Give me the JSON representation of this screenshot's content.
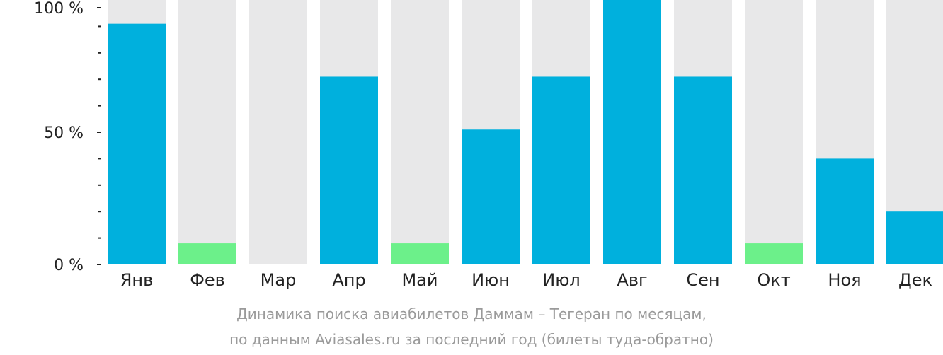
{
  "colors": {
    "bar_primary": "#00b0dd",
    "bar_low": "#6cf08a",
    "bar_background": "#e8e8e9",
    "axis": "#222222",
    "caption_text": "#9a9a9a"
  },
  "caption": {
    "line1": "Динамика поиска авиабилетов Даммам – Тегеран по месяцам,",
    "line2": "по данным Aviasales.ru за последний год (билеты туда-обратно)"
  },
  "chart_data": {
    "type": "bar",
    "categories": [
      "Янв",
      "Фев",
      "Мар",
      "Апр",
      "Май",
      "Июн",
      "Июл",
      "Авг",
      "Сен",
      "Окт",
      "Ноя",
      "Дек"
    ],
    "values": [
      91,
      8,
      0,
      71,
      8,
      51,
      71,
      100,
      71,
      8,
      40,
      20
    ],
    "value_colors": [
      "primary",
      "low",
      "primary",
      "primary",
      "low",
      "primary",
      "primary",
      "primary",
      "primary",
      "low",
      "primary",
      "primary"
    ],
    "ylim": [
      0,
      100
    ],
    "y_ticks": [
      {
        "value": 100,
        "label": "100 %"
      },
      {
        "value": 50,
        "label": "50 %"
      },
      {
        "value": 0,
        "label": "0 %"
      }
    ],
    "y_minor_ticks": [
      90,
      80,
      70,
      60,
      40,
      30,
      20,
      10
    ],
    "grid": false,
    "legend": "none",
    "title": "Динамика поиска авиабилетов Даммам – Тегеран по месяцам,",
    "subtitle": "по данным Aviasales.ru за последний год (билеты туда-обратно)"
  }
}
